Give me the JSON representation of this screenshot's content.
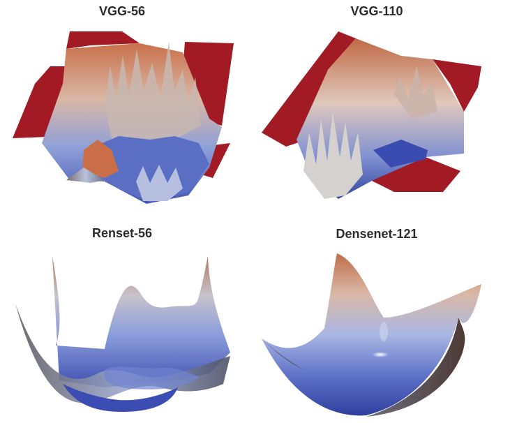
{
  "panels": [
    {
      "title": "VGG-56",
      "surface": "chaotic-landscape"
    },
    {
      "title": "VGG-110",
      "surface": "chaotic-landscape"
    },
    {
      "title": "Renset-56",
      "surface": "wavy-bowl"
    },
    {
      "title": "Densenet-121",
      "surface": "smooth-bowl"
    }
  ],
  "colormap": {
    "low": "#2e3b9a",
    "mid": "#c9cfe0",
    "high": "#b8643c",
    "plateau": "#a11a24"
  }
}
